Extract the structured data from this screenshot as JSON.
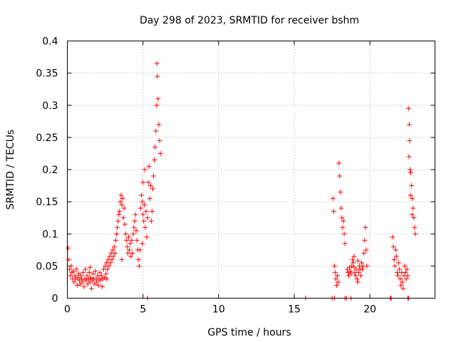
{
  "chart_data": {
    "type": "scatter",
    "title": "Day 298 of 2023, SRMTID for receiver bshm",
    "xlabel": "GPS time / hours",
    "ylabel": "SRMTID / TECUs",
    "xlim": [
      0,
      24.3
    ],
    "ylim": [
      0,
      0.4
    ],
    "xticks": [
      0,
      5,
      10,
      15,
      20
    ],
    "yticks": [
      0,
      0.05,
      0.1,
      0.15,
      0.2,
      0.25,
      0.3,
      0.35,
      0.4
    ],
    "xtick_labels": [
      "0",
      "5",
      "10",
      "15",
      "20"
    ],
    "ytick_labels": [
      "0",
      "0.05",
      "0.1",
      "0.15",
      "0.2",
      "0.25",
      "0.3",
      "0.35",
      "0.4"
    ],
    "grid": true,
    "marker": "+",
    "color": "#ff0000",
    "series": [
      {
        "name": "SRMTID",
        "points": [
          [
            0.05,
            0.078
          ],
          [
            0.1,
            0.06
          ],
          [
            0.15,
            0.045
          ],
          [
            0.2,
            0.035
          ],
          [
            0.25,
            0.05
          ],
          [
            0.3,
            0.04
          ],
          [
            0.35,
            0.03
          ],
          [
            0.4,
            0.042
          ],
          [
            0.45,
            0.025
          ],
          [
            0.5,
            0.035
          ],
          [
            0.55,
            0.03
          ],
          [
            0.6,
            0.045
          ],
          [
            0.65,
            0.02
          ],
          [
            0.7,
            0.032
          ],
          [
            0.75,
            0.038
          ],
          [
            0.8,
            0.028
          ],
          [
            0.85,
            0.022
          ],
          [
            0.9,
            0.035
          ],
          [
            0.95,
            0.03
          ],
          [
            1.0,
            0.025
          ],
          [
            1.05,
            0.04
          ],
          [
            1.1,
            0.018
          ],
          [
            1.15,
            0.03
          ],
          [
            1.2,
            0.045
          ],
          [
            1.25,
            0.028
          ],
          [
            1.3,
            0.035
          ],
          [
            1.35,
            0.022
          ],
          [
            1.4,
            0.03
          ],
          [
            1.45,
            0.04
          ],
          [
            1.5,
            0.025
          ],
          [
            1.55,
            0.032
          ],
          [
            1.6,
            0.015
          ],
          [
            1.65,
            0.028
          ],
          [
            1.7,
            0.038
          ],
          [
            1.75,
            0.03
          ],
          [
            1.8,
            0.022
          ],
          [
            1.85,
            0.042
          ],
          [
            1.9,
            0.03
          ],
          [
            1.95,
            0.025
          ],
          [
            2.0,
            0.035
          ],
          [
            2.05,
            0.02
          ],
          [
            2.1,
            0.03
          ],
          [
            2.15,
            0.04
          ],
          [
            2.2,
            0.028
          ],
          [
            2.25,
            0.035
          ],
          [
            2.3,
            0.018
          ],
          [
            2.35,
            0.03
          ],
          [
            2.4,
            0.045
          ],
          [
            2.45,
            0.032
          ],
          [
            2.5,
            0.05
          ],
          [
            2.55,
            0.038
          ],
          [
            2.6,
            0.055
          ],
          [
            2.65,
            0.045
          ],
          [
            2.7,
            0.06
          ],
          [
            2.75,
            0.05
          ],
          [
            2.8,
            0.065
          ],
          [
            2.85,
            0.055
          ],
          [
            2.9,
            0.07
          ],
          [
            2.95,
            0.06
          ],
          [
            3.0,
            0.075
          ],
          [
            3.05,
            0.065
          ],
          [
            3.1,
            0.08
          ],
          [
            3.15,
            0.07
          ],
          [
            3.2,
            0.09
          ],
          [
            3.25,
            0.1
          ],
          [
            3.3,
            0.11
          ],
          [
            3.35,
            0.12
          ],
          [
            3.4,
            0.13
          ],
          [
            3.45,
            0.135
          ],
          [
            3.5,
            0.15
          ],
          [
            3.55,
            0.16
          ],
          [
            3.6,
            0.145
          ],
          [
            3.65,
            0.155
          ],
          [
            3.7,
            0.125
          ],
          [
            3.75,
            0.14
          ],
          [
            3.8,
            0.115
          ],
          [
            3.85,
            0.1
          ],
          [
            3.9,
            0.09
          ],
          [
            3.95,
            0.08
          ],
          [
            4.0,
            0.07
          ],
          [
            4.05,
            0.095
          ],
          [
            4.1,
            0.075
          ],
          [
            4.15,
            0.085
          ],
          [
            4.2,
            0.065
          ],
          [
            4.25,
            0.09
          ],
          [
            4.3,
            0.07
          ],
          [
            4.35,
            0.1
          ],
          [
            4.4,
            0.11
          ],
          [
            4.45,
            0.12
          ],
          [
            4.5,
            0.13
          ],
          [
            4.55,
            0.105
          ],
          [
            4.6,
            0.09
          ],
          [
            4.65,
            0.075
          ],
          [
            4.7,
            0.06
          ],
          [
            4.75,
            0.05
          ],
          [
            4.8,
            0.075
          ],
          [
            4.85,
            0.14
          ],
          [
            4.9,
            0.16
          ],
          [
            4.95,
            0.15
          ],
          [
            5.0,
            0.13
          ],
          [
            5.05,
            0.12
          ],
          [
            5.1,
            0.145
          ],
          [
            5.15,
            0.11
          ],
          [
            5.2,
            0.135
          ],
          [
            5.25,
            0.095
          ],
          [
            5.3,
            0.125
          ],
          [
            5.35,
            0.18
          ],
          [
            5.4,
            0.205
          ],
          [
            5.45,
            0.155
          ],
          [
            5.5,
            0.175
          ],
          [
            5.55,
            0.12
          ],
          [
            5.6,
            0.135
          ],
          [
            5.65,
            0.17
          ],
          [
            5.7,
            0.19
          ],
          [
            5.75,
            0.215
          ],
          [
            5.8,
            0.235
          ],
          [
            5.85,
            0.26
          ],
          [
            5.9,
            0.3
          ],
          [
            5.92,
            0.365
          ],
          [
            5.95,
            0.345
          ],
          [
            6.0,
            0.31
          ],
          [
            6.05,
            0.27
          ],
          [
            6.1,
            0.245
          ],
          [
            6.15,
            0.225
          ],
          [
            5.1,
            0.2
          ],
          [
            5.0,
            0.18
          ],
          [
            4.95,
            0.085
          ],
          [
            3.6,
            0.06
          ],
          [
            2.6,
            0.03
          ],
          [
            1.5,
            0.048
          ],
          [
            17.55,
            0.155
          ],
          [
            17.6,
            0.135
          ],
          [
            17.65,
            0.05
          ],
          [
            17.7,
            0.04
          ],
          [
            17.75,
            0.03
          ],
          [
            17.8,
            0.02
          ],
          [
            17.85,
            0.035
          ],
          [
            17.9,
            0.025
          ],
          [
            17.95,
            0.21
          ],
          [
            18.0,
            0.19
          ],
          [
            18.05,
            0.165
          ],
          [
            18.1,
            0.14
          ],
          [
            18.15,
            0.125
          ],
          [
            18.2,
            0.11
          ],
          [
            18.25,
            0.12
          ],
          [
            18.3,
            0.1
          ],
          [
            18.35,
            0.085
          ],
          [
            18.5,
            0.045
          ],
          [
            18.55,
            0.04
          ],
          [
            18.6,
            0.035
          ],
          [
            18.65,
            0.048
          ],
          [
            18.7,
            0.042
          ],
          [
            18.75,
            0.038
          ],
          [
            18.8,
            0.05
          ],
          [
            18.85,
            0.06
          ],
          [
            18.9,
            0.055
          ],
          [
            18.95,
            0.048
          ],
          [
            19.0,
            0.04
          ],
          [
            19.05,
            0.035
          ],
          [
            19.1,
            0.045
          ],
          [
            19.15,
            0.03
          ],
          [
            19.2,
            0.025
          ],
          [
            19.25,
            0.04
          ],
          [
            19.3,
            0.05
          ],
          [
            19.35,
            0.045
          ],
          [
            19.4,
            0.035
          ],
          [
            19.45,
            0.055
          ],
          [
            19.5,
            0.045
          ],
          [
            19.55,
            0.05
          ],
          [
            19.6,
            0.07
          ],
          [
            19.65,
            0.09
          ],
          [
            19.7,
            0.11
          ],
          [
            19.75,
            0.075
          ],
          [
            19.8,
            0.05
          ],
          [
            18.95,
            0.065
          ],
          [
            19.2,
            0.058
          ],
          [
            21.5,
            0.095
          ],
          [
            21.55,
            0.08
          ],
          [
            21.6,
            0.06
          ],
          [
            21.65,
            0.05
          ],
          [
            21.7,
            0.075
          ],
          [
            21.75,
            0.065
          ],
          [
            21.8,
            0.04
          ],
          [
            21.85,
            0.035
          ],
          [
            21.9,
            0.055
          ],
          [
            21.95,
            0.045
          ],
          [
            22.0,
            0.03
          ],
          [
            22.05,
            0.02
          ],
          [
            22.1,
            0.04
          ],
          [
            22.15,
            0.025
          ],
          [
            22.2,
            0.015
          ],
          [
            22.25,
            0.035
          ],
          [
            22.3,
            0.05
          ],
          [
            22.35,
            0.04
          ],
          [
            22.4,
            0.03
          ],
          [
            22.45,
            0.045
          ],
          [
            22.5,
            0.035
          ],
          [
            22.55,
            0.295
          ],
          [
            22.6,
            0.27
          ],
          [
            22.62,
            0.245
          ],
          [
            22.65,
            0.2
          ],
          [
            22.7,
            0.195
          ],
          [
            22.75,
            0.175
          ],
          [
            22.8,
            0.155
          ],
          [
            22.85,
            0.14
          ],
          [
            22.9,
            0.125
          ],
          [
            22.95,
            0.11
          ],
          [
            23.0,
            0.1
          ],
          [
            22.58,
            0.22
          ],
          [
            22.68,
            0.16
          ],
          [
            22.78,
            0.13
          ],
          [
            5.3,
            0.0
          ],
          [
            15.75,
            0.0
          ],
          [
            17.5,
            0.0
          ],
          [
            17.65,
            0.0
          ],
          [
            18.35,
            0.0
          ],
          [
            18.45,
            0.0
          ],
          [
            18.75,
            0.0
          ],
          [
            21.35,
            0.0
          ],
          [
            21.4,
            0.0
          ],
          [
            22.5,
            0.0
          ],
          [
            22.55,
            0.0
          ]
        ]
      }
    ]
  }
}
